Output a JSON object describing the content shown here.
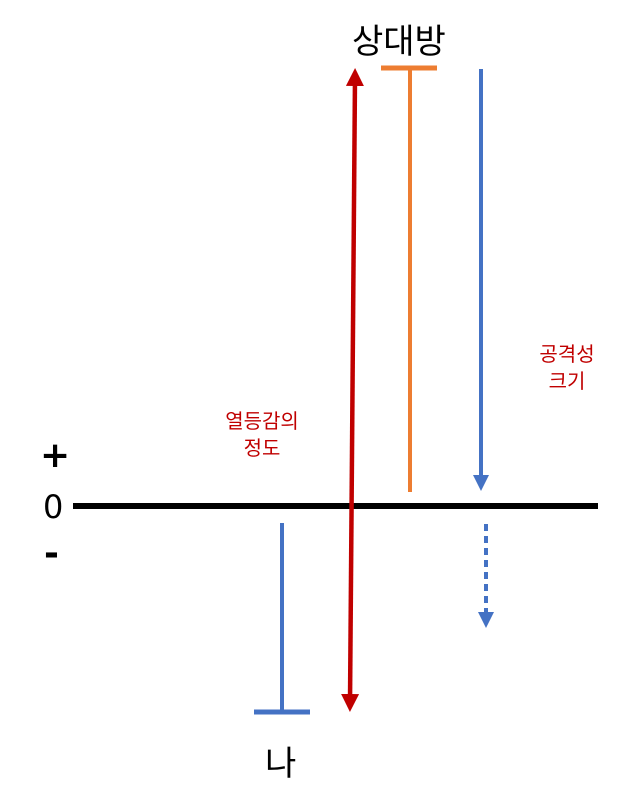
{
  "labels": {
    "opponent": "상대방",
    "me": "나",
    "plus": "+",
    "zero": "0",
    "minus": "-",
    "inferiority_line1": "열등감의",
    "inferiority_line2": "정도",
    "attack_line1": "공격성",
    "attack_line2": "크기"
  },
  "colors": {
    "axis": "#000000",
    "inferiority_arrow": "#c00000",
    "opponent_bar": "#ed7d31",
    "blue": "#4472c4",
    "note_text": "#c00000"
  }
}
